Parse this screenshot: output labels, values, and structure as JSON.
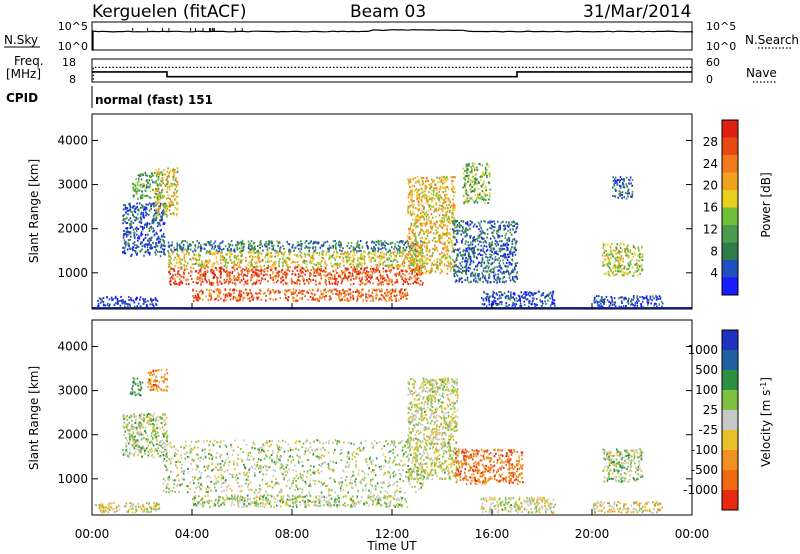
{
  "header": {
    "station": "Kerguelen (fitACF)",
    "beam": "Beam 03",
    "date": "31/Mar/2014"
  },
  "top_panels": {
    "nsky_label": "N.Sky",
    "nsky_ticks": [
      "10^5",
      "10^0"
    ],
    "nsearch_label": "N.Search",
    "nsearch_ticks": [
      "10^5",
      "10^0"
    ],
    "freq_label": "Freq.",
    "freq_unit": "[MHz]",
    "freq_ticks": [
      "18",
      "8"
    ],
    "nave_label": "Nave",
    "nave_ticks": [
      "60",
      "0"
    ],
    "cpid_label": "CPID",
    "cpid_value": "normal (fast) 151",
    "freq_series": [
      [
        0,
        12.4
      ],
      [
        3.0,
        12.4
      ],
      [
        3.0,
        10.3
      ],
      [
        17.0,
        10.3
      ],
      [
        17.0,
        12.4
      ],
      [
        24,
        12.4
      ]
    ],
    "nave_series": [
      [
        0,
        0
      ],
      [
        0.05,
        0
      ],
      [
        0.05,
        38
      ],
      [
        24,
        38
      ]
    ]
  },
  "chart_data": [
    {
      "type": "heatmap",
      "ylabel": "Slant Range [km]",
      "xlabel": "Time UT",
      "x_ticks": [
        "00:00",
        "04:00",
        "08:00",
        "12:00",
        "16:00",
        "20:00",
        "00:00"
      ],
      "y_ticks": [
        "1000",
        "2000",
        "3000",
        "4000"
      ],
      "xlim": [
        0,
        24
      ],
      "ylim": [
        180,
        4600
      ],
      "colorbar": {
        "label": "Power [dB]",
        "ticks": [
          "4",
          "8",
          "12",
          "16",
          "20",
          "24",
          "28"
        ],
        "colors": [
          "#1a1aff",
          "#2050c0",
          "#2f7c4b",
          "#4c9a4c",
          "#6fbf3a",
          "#e8cf1e",
          "#f2a020",
          "#f07a1c",
          "#e84a14",
          "#e02010"
        ]
      },
      "regions": [
        {
          "t0": 0.1,
          "t1": 2.6,
          "r0": 250,
          "r1": 480,
          "level": 0.1
        },
        {
          "t0": 1.2,
          "t1": 2.9,
          "r0": 1400,
          "r1": 2600,
          "level": 0.15
        },
        {
          "t0": 1.6,
          "t1": 2.8,
          "r0": 2700,
          "r1": 3300,
          "level": 0.35
        },
        {
          "t0": 2.5,
          "t1": 3.4,
          "r0": 2300,
          "r1": 3400,
          "level": 0.55
        },
        {
          "t0": 3.0,
          "t1": 13.2,
          "r0": 1500,
          "r1": 1750,
          "level": 0.25
        },
        {
          "t0": 3.0,
          "t1": 13.2,
          "r0": 1150,
          "r1": 1500,
          "level": 0.55
        },
        {
          "t0": 3.0,
          "t1": 13.2,
          "r0": 750,
          "r1": 1150,
          "level": 0.85
        },
        {
          "t0": 4.0,
          "t1": 12.6,
          "r0": 380,
          "r1": 650,
          "level": 0.8
        },
        {
          "t0": 12.6,
          "t1": 14.5,
          "r0": 1000,
          "r1": 3200,
          "level": 0.6
        },
        {
          "t0": 14.4,
          "t1": 17.0,
          "r0": 800,
          "r1": 2200,
          "level": 0.2
        },
        {
          "t0": 14.8,
          "t1": 15.9,
          "r0": 2600,
          "r1": 3500,
          "level": 0.4
        },
        {
          "t0": 15.5,
          "t1": 18.5,
          "r0": 250,
          "r1": 600,
          "level": 0.12
        },
        {
          "t0": 20.4,
          "t1": 22.0,
          "r0": 950,
          "r1": 1700,
          "level": 0.5
        },
        {
          "t0": 20.8,
          "t1": 21.6,
          "r0": 2700,
          "r1": 3200,
          "level": 0.2
        },
        {
          "t0": 20.0,
          "t1": 22.8,
          "r0": 250,
          "r1": 500,
          "level": 0.15
        }
      ]
    },
    {
      "type": "heatmap",
      "ylabel": "Slant Range [km]",
      "xlabel": "Time UT",
      "x_ticks": [
        "00:00",
        "04:00",
        "08:00",
        "12:00",
        "16:00",
        "20:00",
        "00:00"
      ],
      "y_ticks": [
        "1000",
        "2000",
        "3000",
        "4000"
      ],
      "xlim": [
        0,
        24
      ],
      "ylim": [
        180,
        4600
      ],
      "colorbar": {
        "label": "Velocity [m s^-1]",
        "ticks": [
          "1000",
          "500",
          "100",
          "25",
          "-25",
          "-100",
          "-500",
          "-1000"
        ],
        "colors": [
          "#2030c0",
          "#2060a0",
          "#2f8f40",
          "#7ec040",
          "#c8c8c8",
          "#e8c02a",
          "#f09020",
          "#f06a14",
          "#e82a10"
        ]
      },
      "regions": [
        {
          "t0": 0.1,
          "t1": 2.7,
          "r0": 250,
          "r1": 480,
          "level": 0.55
        },
        {
          "t0": 1.2,
          "t1": 3.0,
          "r0": 1500,
          "r1": 2500,
          "level": 0.45
        },
        {
          "t0": 2.2,
          "t1": 3.0,
          "r0": 3000,
          "r1": 3500,
          "level": 0.75
        },
        {
          "t0": 1.5,
          "t1": 2.0,
          "r0": 2900,
          "r1": 3300,
          "level": 0.3
        },
        {
          "t0": 2.8,
          "t1": 13.2,
          "r0": 700,
          "r1": 1900,
          "level": 0.45
        },
        {
          "t0": 4.0,
          "t1": 12.6,
          "r0": 380,
          "r1": 650,
          "level": 0.45
        },
        {
          "t0": 12.6,
          "t1": 14.6,
          "r0": 1000,
          "r1": 3300,
          "level": 0.5
        },
        {
          "t0": 14.5,
          "t1": 17.2,
          "r0": 900,
          "r1": 1700,
          "level": 0.8
        },
        {
          "t0": 15.5,
          "t1": 18.5,
          "r0": 250,
          "r1": 600,
          "level": 0.5
        },
        {
          "t0": 20.4,
          "t1": 22.0,
          "r0": 950,
          "r1": 1700,
          "level": 0.45
        },
        {
          "t0": 20.0,
          "t1": 22.8,
          "r0": 250,
          "r1": 500,
          "level": 0.55
        }
      ]
    }
  ]
}
